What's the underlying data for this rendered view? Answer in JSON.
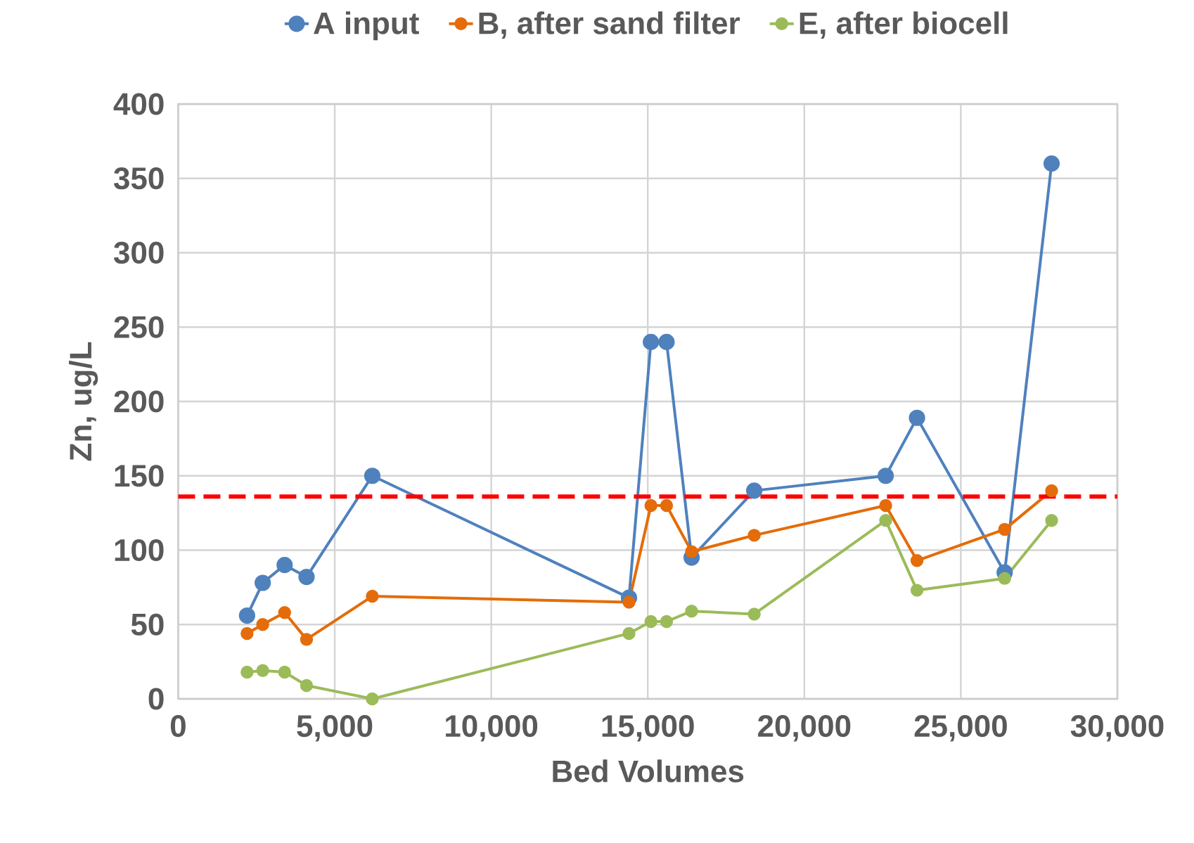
{
  "chart_data": {
    "type": "line",
    "xlabel": "Bed Volumes",
    "ylabel": "Zn, ug/L",
    "x": [
      2200,
      2700,
      3400,
      4100,
      6200,
      14400,
      15100,
      15600,
      16400,
      18400,
      22600,
      23600,
      26400,
      27900
    ],
    "series": [
      {
        "name": "A input",
        "color": "#4f81bd",
        "values": [
          56,
          78,
          90,
          82,
          150,
          68,
          240,
          240,
          95,
          140,
          150,
          189,
          85,
          360
        ]
      },
      {
        "name": "B, after sand filter",
        "color": "#e46c0a",
        "values": [
          44,
          50,
          58,
          40,
          69,
          65,
          130,
          130,
          99,
          110,
          130,
          93,
          114,
          140
        ]
      },
      {
        "name": "E, after biocell",
        "color": "#9bbb59",
        "values": [
          18,
          19,
          18,
          9,
          0,
          44,
          52,
          52,
          59,
          57,
          120,
          73,
          81,
          120
        ]
      }
    ],
    "xlim": [
      0,
      30000
    ],
    "xticks": [
      0,
      {
        "value": 5000,
        "label": "5,000"
      },
      {
        "value": 10000,
        "label": "10,000"
      },
      {
        "value": 15000,
        "label": "15,000"
      },
      {
        "value": 20000,
        "label": "20,000"
      },
      {
        "value": 25000,
        "label": "25,000"
      },
      {
        "value": 30000,
        "label": "30,000"
      }
    ],
    "ylim": [
      0,
      400
    ],
    "yticks": [
      0,
      50,
      100,
      150,
      200,
      250,
      300,
      350,
      400
    ],
    "ref_lines": [
      {
        "axis": "y",
        "value": 136,
        "color": "#ff0000",
        "line_style": "dashed"
      }
    ],
    "grid": true,
    "legend": "top",
    "marker": "circle",
    "line_style": "solid"
  }
}
